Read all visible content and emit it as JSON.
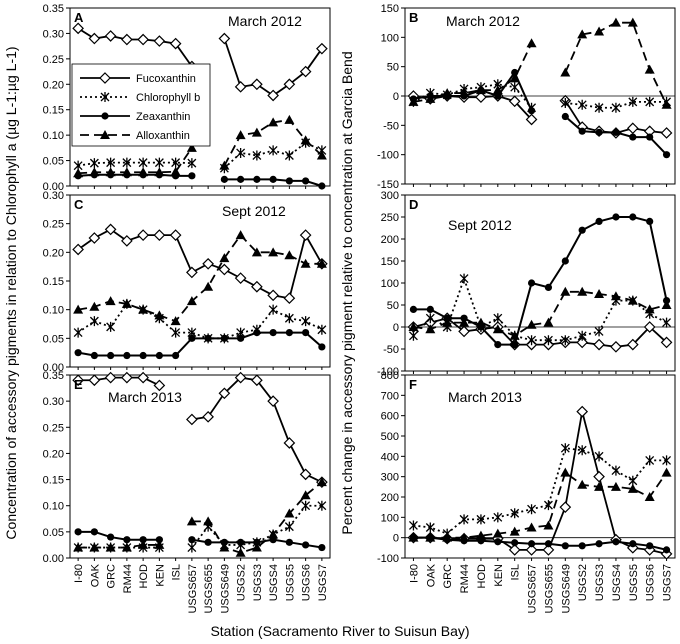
{
  "figure": {
    "left_ylabel": "Concentration of accessory pigments in relation to Chlorophyll a (µg L-1:µg L-1)",
    "right_ylabel": "Percent change in accessory pigment relative to concentration at Garcia Bend",
    "xlabel": "Station (Sacramento River to Suisun Bay)"
  },
  "chart_data": [
    {
      "panel": "A",
      "type": "line",
      "title": "March 2012",
      "categories": [
        "I-80",
        "OAK",
        "GRC",
        "RM44",
        "HOD",
        "KEN",
        "ISL",
        "USGS657",
        "USGS655",
        "USGS649",
        "USGS2",
        "USGS3",
        "USGS4",
        "USGS5",
        "USGS6",
        "USGS7"
      ],
      "ylim": [
        0,
        0.35
      ],
      "yticks": [
        "0.00",
        "0.05",
        "0.10",
        "0.15",
        "0.20",
        "0.25",
        "0.30",
        "0.35"
      ],
      "legend": [
        "Fucoxanthin",
        "Chlorophyll b",
        "Zeaxanthin",
        "Alloxanthin"
      ],
      "series": [
        {
          "name": "Fucoxanthin",
          "style": "fuco",
          "values": [
            0.31,
            0.29,
            0.295,
            0.288,
            0.288,
            0.285,
            0.28,
            0.235,
            null,
            0.29,
            0.195,
            0.2,
            0.178,
            0.2,
            0.225,
            0.27
          ]
        },
        {
          "name": "Chlorophyll b",
          "style": "chlb",
          "values": [
            0.04,
            0.045,
            0.046,
            0.046,
            0.046,
            0.046,
            0.046,
            0.045,
            null,
            0.035,
            0.065,
            0.06,
            0.07,
            0.06,
            0.085,
            0.07
          ]
        },
        {
          "name": "Zeaxanthin",
          "style": "zea",
          "values": [
            0.02,
            0.022,
            0.022,
            0.022,
            0.022,
            0.022,
            0.02,
            0.02,
            null,
            0.013,
            0.013,
            0.013,
            0.013,
            0.01,
            0.01,
            0.0
          ]
        },
        {
          "name": "Alloxanthin",
          "style": "allo",
          "values": [
            0.025,
            0.027,
            0.027,
            0.027,
            0.027,
            0.027,
            0.028,
            0.075,
            null,
            0.04,
            0.1,
            0.105,
            0.125,
            0.13,
            0.09,
            0.06
          ]
        }
      ]
    },
    {
      "panel": "B",
      "type": "line",
      "title": "March 2012",
      "categories": [
        "I-80",
        "OAK",
        "GRC",
        "RM44",
        "HOD",
        "KEN",
        "ISL",
        "USGS657",
        "USGS655",
        "USGS649",
        "USGS2",
        "USGS3",
        "USGS4",
        "USGS5",
        "USGS6",
        "USGS7"
      ],
      "ylim": [
        -150,
        150
      ],
      "yticks": [
        "-150",
        "-100",
        "-50",
        "0",
        "50",
        "100",
        "150"
      ],
      "series": [
        {
          "name": "Fucoxanthin",
          "style": "fuco",
          "values": [
            0,
            -5,
            0,
            -2,
            -2,
            0,
            -9,
            -40,
            null,
            -8,
            -53,
            -60,
            -63,
            -55,
            -60,
            -63
          ]
        },
        {
          "name": "Chlorophyll b",
          "style": "chlb",
          "values": [
            -10,
            5,
            2,
            12,
            15,
            20,
            15,
            -20,
            null,
            -12,
            -15,
            -20,
            -20,
            -10,
            -10,
            -10
          ]
        },
        {
          "name": "Zeaxanthin",
          "style": "zea",
          "values": [
            -5,
            0,
            0,
            0,
            10,
            0,
            40,
            -25,
            null,
            -35,
            -60,
            -62,
            -62,
            -70,
            -70,
            -100
          ]
        },
        {
          "name": "Alloxanthin",
          "style": "allo",
          "values": [
            -10,
            -5,
            5,
            5,
            10,
            10,
            30,
            90,
            null,
            40,
            105,
            110,
            125,
            125,
            45,
            -15
          ]
        }
      ]
    },
    {
      "panel": "C",
      "type": "line",
      "title": "Sept 2012",
      "categories": [
        "I-80",
        "OAK",
        "GRC",
        "RM44",
        "HOD",
        "KEN",
        "ISL",
        "USGS657",
        "USGS655",
        "USGS649",
        "USGS2",
        "USGS3",
        "USGS4",
        "USGS5",
        "USGS6",
        "USGS7"
      ],
      "ylim": [
        0,
        0.3
      ],
      "yticks": [
        "0.00",
        "0.05",
        "0.10",
        "0.15",
        "0.20",
        "0.25",
        "0.30"
      ],
      "series": [
        {
          "name": "Fucoxanthin",
          "style": "fuco",
          "values": [
            0.205,
            0.225,
            0.24,
            0.22,
            0.23,
            0.23,
            0.23,
            0.165,
            0.18,
            0.17,
            0.155,
            0.14,
            0.125,
            0.12,
            0.23,
            0.18
          ]
        },
        {
          "name": "Chlorophyll b",
          "style": "chlb",
          "values": [
            0.06,
            0.08,
            0.07,
            0.11,
            0.1,
            0.085,
            0.06,
            0.06,
            0.05,
            0.05,
            0.06,
            0.065,
            0.1,
            0.085,
            0.08,
            0.065
          ]
        },
        {
          "name": "Zeaxanthin",
          "style": "zea",
          "values": [
            0.025,
            0.02,
            0.02,
            0.02,
            0.02,
            0.02,
            0.02,
            0.05,
            0.05,
            0.05,
            0.05,
            0.06,
            0.06,
            0.06,
            0.06,
            0.035
          ]
        },
        {
          "name": "Alloxanthin",
          "style": "allo",
          "values": [
            0.1,
            0.105,
            0.115,
            0.11,
            0.1,
            0.09,
            0.08,
            0.115,
            0.14,
            0.19,
            0.23,
            0.2,
            0.2,
            0.195,
            0.18,
            0.18
          ]
        }
      ]
    },
    {
      "panel": "D",
      "type": "line",
      "title": "Sept 2012",
      "categories": [
        "I-80",
        "OAK",
        "GRC",
        "RM44",
        "HOD",
        "KEN",
        "ISL",
        "USGS657",
        "USGS655",
        "USGS649",
        "USGS2",
        "USGS3",
        "USGS4",
        "USGS5",
        "USGS6",
        "USGS7"
      ],
      "ylim": [
        -100,
        300
      ],
      "yticks": [
        "-100",
        "-50",
        "0",
        "50",
        "100",
        "150",
        "200",
        "250",
        "300"
      ],
      "series": [
        {
          "name": "Fucoxanthin",
          "style": "fuco",
          "values": [
            0,
            10,
            20,
            -10,
            -5,
            0,
            -40,
            -40,
            -40,
            -35,
            -35,
            -40,
            -45,
            -40,
            0,
            -35
          ]
        },
        {
          "name": "Chlorophyll b",
          "style": "chlb",
          "values": [
            -20,
            20,
            0,
            110,
            0,
            20,
            -20,
            -30,
            -30,
            -30,
            -20,
            -10,
            60,
            60,
            30,
            10
          ]
        },
        {
          "name": "Zeaxanthin",
          "style": "zea",
          "values": [
            40,
            40,
            20,
            20,
            0,
            -40,
            -40,
            100,
            90,
            150,
            220,
            240,
            250,
            250,
            240,
            60
          ]
        },
        {
          "name": "Alloxanthin",
          "style": "allo",
          "values": [
            0,
            -5,
            10,
            10,
            10,
            -5,
            -20,
            5,
            10,
            80,
            80,
            75,
            70,
            60,
            40,
            50
          ]
        }
      ]
    },
    {
      "panel": "E",
      "type": "line",
      "title": "March 2013",
      "categories": [
        "I-80",
        "OAK",
        "GRC",
        "RM44",
        "HOD",
        "KEN",
        "ISL",
        "USGS657",
        "USGS655",
        "USGS649",
        "USGS2",
        "USGS3",
        "USGS4",
        "USGS5",
        "USGS6",
        "USGS7"
      ],
      "ylim": [
        0,
        0.35
      ],
      "yticks": [
        "0.00",
        "0.05",
        "0.10",
        "0.15",
        "0.20",
        "0.25",
        "0.30",
        "0.35"
      ],
      "series": [
        {
          "name": "Fucoxanthin",
          "style": "fuco",
          "values": [
            0.34,
            0.34,
            0.345,
            0.345,
            0.345,
            0.33,
            null,
            0.265,
            0.27,
            0.315,
            0.345,
            0.34,
            0.3,
            0.22,
            0.16,
            0.145
          ]
        },
        {
          "name": "Chlorophyll b",
          "style": "chlb",
          "values": [
            0.02,
            0.02,
            0.02,
            0.02,
            0.02,
            0.02,
            null,
            0.02,
            0.06,
            0.025,
            0.025,
            0.03,
            0.045,
            0.06,
            0.1,
            0.1
          ]
        },
        {
          "name": "Zeaxanthin",
          "style": "zea",
          "values": [
            0.05,
            0.05,
            0.04,
            0.035,
            0.035,
            0.035,
            null,
            0.035,
            0.03,
            0.03,
            0.03,
            0.03,
            0.035,
            0.03,
            0.025,
            0.02
          ]
        },
        {
          "name": "Alloxanthin",
          "style": "allo",
          "values": [
            0.02,
            0.02,
            0.02,
            0.02,
            0.025,
            0.025,
            null,
            0.07,
            0.07,
            0.02,
            0.01,
            0.02,
            0.045,
            0.085,
            0.12,
            0.145
          ]
        }
      ]
    },
    {
      "panel": "F",
      "type": "line",
      "title": "March 2013",
      "categories": [
        "I-80",
        "OAK",
        "GRC",
        "RM44",
        "HOD",
        "KEN",
        "ISL",
        "USGS657",
        "USGS655",
        "USGS649",
        "USGS2",
        "USGS3",
        "USGS4",
        "USGS5",
        "USGS6",
        "USGS7"
      ],
      "ylim": [
        -100,
        800
      ],
      "yticks": [
        "-100",
        "0",
        "100",
        "200",
        "300",
        "400",
        "500",
        "600",
        "700",
        "800"
      ],
      "series": [
        {
          "name": "Fucoxanthin",
          "style": "fuco",
          "values": [
            0,
            0,
            -5,
            -5,
            -5,
            -5,
            -60,
            -60,
            -60,
            150,
            620,
            300,
            -10,
            -50,
            -60,
            -80
          ]
        },
        {
          "name": "Chlorophyll b",
          "style": "chlb",
          "values": [
            60,
            50,
            20,
            90,
            90,
            100,
            120,
            140,
            160,
            440,
            430,
            400,
            330,
            280,
            380,
            380
          ]
        },
        {
          "name": "Zeaxanthin",
          "style": "zea",
          "values": [
            0,
            0,
            -10,
            -15,
            -15,
            -20,
            -25,
            -30,
            -30,
            -40,
            -40,
            -30,
            -20,
            -30,
            -40,
            -60
          ]
        },
        {
          "name": "Alloxanthin",
          "style": "allo",
          "values": [
            0,
            0,
            0,
            0,
            10,
            20,
            30,
            50,
            60,
            320,
            260,
            250,
            250,
            240,
            200,
            320
          ]
        }
      ]
    }
  ]
}
